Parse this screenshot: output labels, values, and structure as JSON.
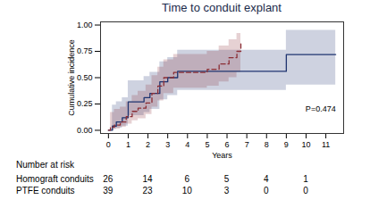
{
  "chart_data": {
    "type": "line",
    "title": "Time to conduit explant",
    "xlabel": "Years",
    "ylabel": "Cumulative incidence",
    "xlim": [
      -0.4,
      11.9
    ],
    "xticks": [
      0,
      1,
      2,
      3,
      4,
      5,
      6,
      7,
      8,
      9,
      10,
      11
    ],
    "ylim": [
      -0.03,
      1.03
    ],
    "yticks": [
      {
        "value": 0,
        "label": "0.00"
      },
      {
        "value": 0.25,
        "label": "0.25"
      },
      {
        "value": 0.5,
        "label": "0.50"
      },
      {
        "value": 0.75,
        "label": "0.75"
      },
      {
        "value": 1,
        "label": "1.00"
      }
    ],
    "grid": false,
    "annotation": {
      "text": "P=0.474",
      "x": 11.5,
      "y": 0.2
    },
    "risk_table_title": "Number at risk",
    "at_risk_x": [
      0,
      2,
      4,
      6,
      8,
      10
    ],
    "series": [
      {
        "name": "Homograft conduits",
        "color": "#1f3470",
        "line_style": "solid",
        "x": [
          0,
          0.2,
          0.4,
          0.7,
          1.0,
          1.8,
          2.1,
          2.6,
          3.0,
          3.5,
          9.0,
          11.5
        ],
        "values": [
          0,
          0.04,
          0.08,
          0.12,
          0.27,
          0.31,
          0.35,
          0.46,
          0.5,
          0.56,
          0.72,
          0.72
        ],
        "lower": [
          0,
          0.01,
          0.02,
          0.04,
          0.14,
          0.17,
          0.2,
          0.29,
          0.33,
          0.38,
          0.43,
          0.43
        ],
        "upper": [
          0,
          0.24,
          0.27,
          0.31,
          0.47,
          0.51,
          0.55,
          0.65,
          0.69,
          0.76,
          0.95,
          0.95
        ],
        "at_risk": [
          26,
          14,
          6,
          5,
          4,
          1
        ]
      },
      {
        "name": "PTFE conduits",
        "color": "#8b2e35",
        "line_style": "dashed",
        "x": [
          0,
          0.1,
          0.3,
          0.6,
          0.9,
          1.2,
          1.5,
          1.9,
          2.2,
          2.5,
          2.8,
          3.3,
          5.0,
          5.6,
          6.1,
          6.5,
          6.7
        ],
        "values": [
          0,
          0.03,
          0.05,
          0.08,
          0.13,
          0.18,
          0.21,
          0.26,
          0.35,
          0.42,
          0.5,
          0.55,
          0.58,
          0.63,
          0.69,
          0.75,
          0.82
        ],
        "lower": [
          0,
          0.0,
          0.01,
          0.03,
          0.06,
          0.09,
          0.11,
          0.15,
          0.22,
          0.28,
          0.35,
          0.4,
          0.42,
          0.46,
          0.5,
          0.55,
          0.6
        ],
        "upper": [
          0,
          0.17,
          0.2,
          0.22,
          0.27,
          0.33,
          0.37,
          0.43,
          0.52,
          0.6,
          0.67,
          0.72,
          0.75,
          0.8,
          0.86,
          0.92,
          0.97
        ],
        "at_risk": [
          39,
          23,
          10,
          3,
          0,
          0
        ]
      }
    ]
  }
}
